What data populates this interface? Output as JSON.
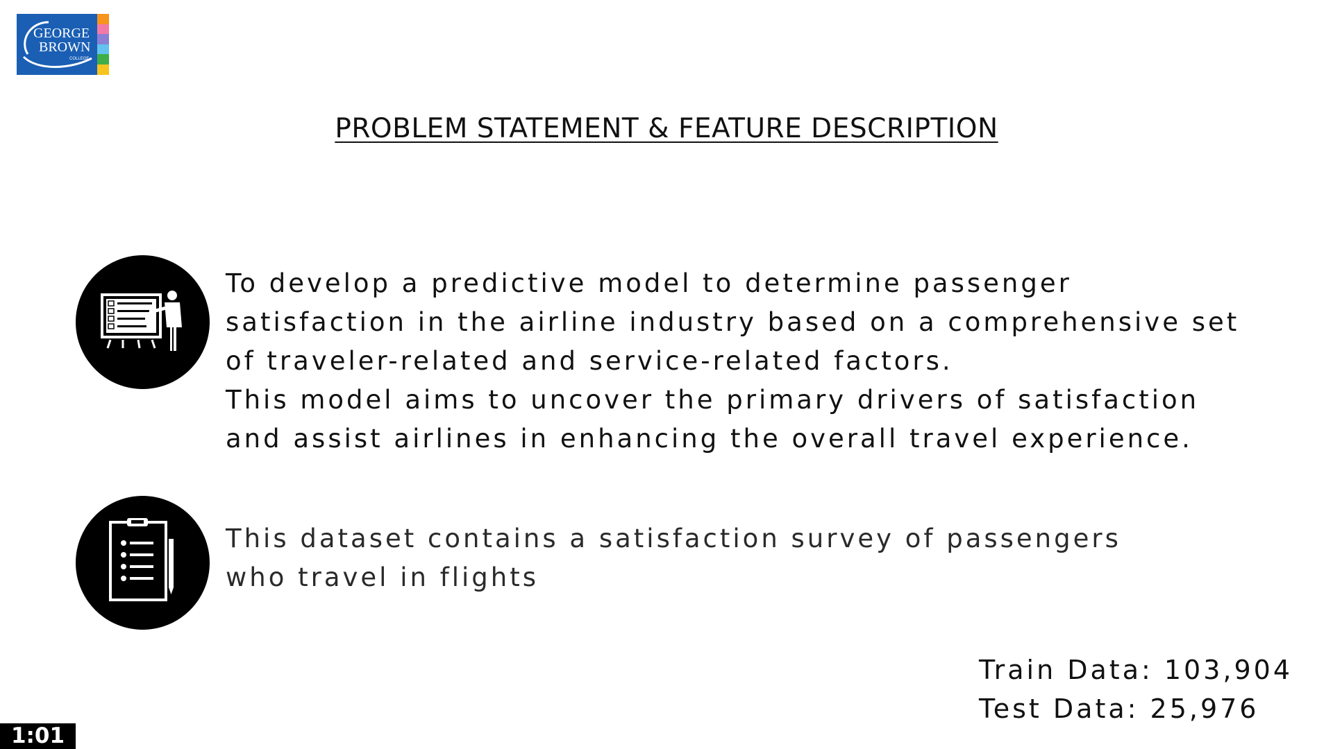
{
  "logo": {
    "line1": "GEORGE",
    "line2": "BROWN",
    "line3": "COLLEGE",
    "background_color": "#1a5fb4",
    "stripe_colors": [
      "#f7941d",
      "#f37aa6",
      "#8a7fd4",
      "#63c3ee",
      "#3fae49",
      "#f7c41f"
    ]
  },
  "title": "PROBLEM STATEMENT & FEATURE DESCRIPTION",
  "problem": {
    "icon": "presentation-icon",
    "lines": [
      "To develop a predictive model to determine passenger",
      "satisfaction in the airline industry based on a comprehensive set",
      "of traveler-related and service-related factors.",
      "This model aims to uncover the primary drivers of satisfaction",
      "and assist airlines in enhancing the overall travel experience."
    ]
  },
  "dataset": {
    "icon": "clipboard-icon",
    "lines": [
      "This dataset contains a satisfaction survey of passengers",
      "who travel in flights"
    ]
  },
  "stats": {
    "train": "Train Data: 103,904",
    "test": "Test Data: 25,976"
  },
  "timestamp": "1:01"
}
